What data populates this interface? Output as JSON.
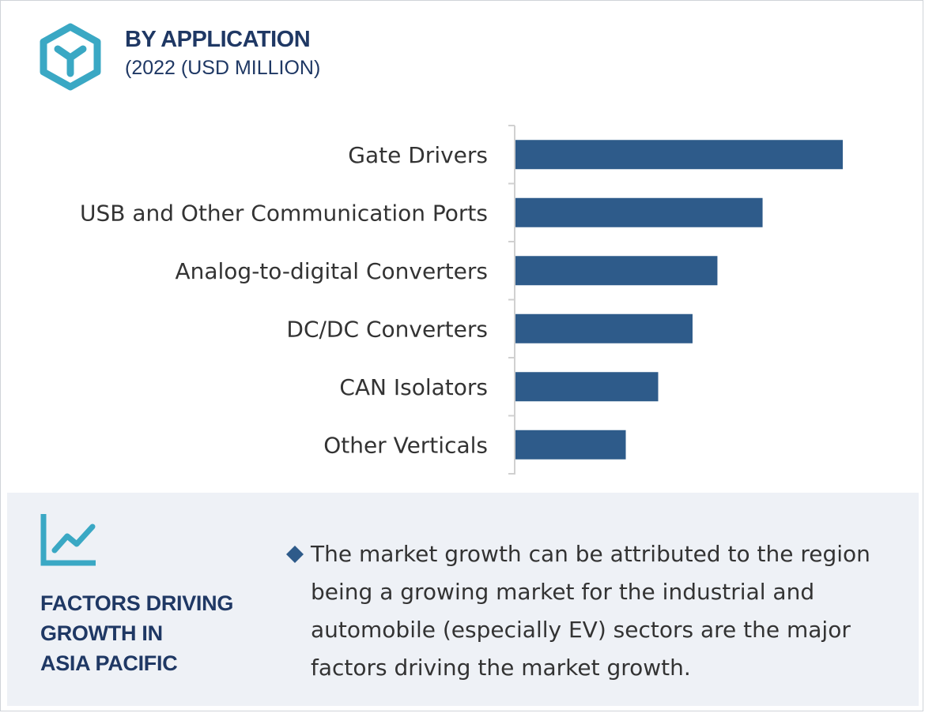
{
  "header": {
    "title": "BY APPLICATION",
    "subtitle": "(2022 (USD MILLION)",
    "icon": "hexagon-y-icon",
    "accent_color": "#3aa8c4"
  },
  "chart_data": {
    "type": "bar",
    "orientation": "horizontal",
    "title": "BY APPLICATION",
    "subtitle": "(2022 (USD MILLION)",
    "categories": [
      "Gate Drivers",
      "USB and Other Communication Ports",
      "Analog-to-digital Converters",
      "DC/DC Converters",
      "CAN Isolators",
      "Other Verticals"
    ],
    "values": [
      100,
      75.5,
      61.7,
      54.1,
      43.6,
      33.7
    ],
    "value_axis_shown": false,
    "xlim": [
      0,
      100
    ],
    "grid": false,
    "legend": "none",
    "bar_color": "#2e5b8a"
  },
  "factors": {
    "icon": "line-chart-icon",
    "title_lines": [
      "FACTORS DRIVING",
      "GROWTH IN",
      "ASIA PACIFIC"
    ],
    "bullet_icon": "diamond-bullet-icon",
    "bullet_text": "The market growth can be attributed to the region being a growing market for the industrial and automobile (especially EV) sectors are the major factors driving the market growth."
  }
}
